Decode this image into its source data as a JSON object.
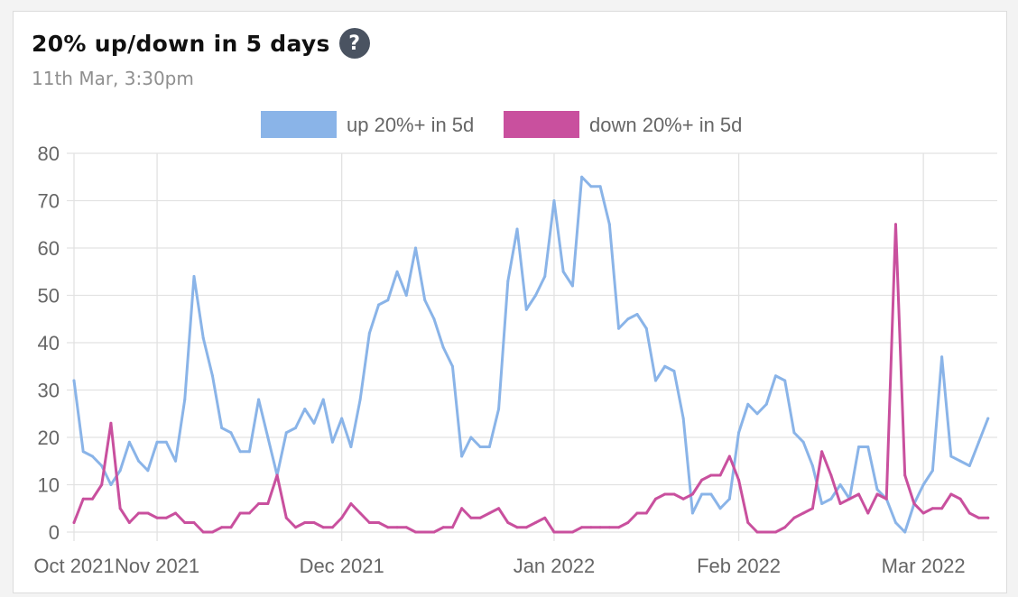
{
  "header": {
    "title": "20% up/down in 5 days",
    "help_icon": "?",
    "subtitle": "11th Mar, 3:30pm"
  },
  "chart_data": {
    "type": "line",
    "title": "20% up/down in 5 days",
    "subtitle": "11th Mar, 3:30pm",
    "xlabel": "",
    "ylabel": "",
    "ylim": [
      0,
      80
    ],
    "yticks": [
      0,
      10,
      20,
      30,
      40,
      50,
      60,
      70,
      80
    ],
    "x_range": [
      0,
      100
    ],
    "xtick_labels": [
      {
        "label": "Oct 2021",
        "pos": 0
      },
      {
        "label": "Nov 2021",
        "pos": 9
      },
      {
        "label": "Dec 2021",
        "pos": 29
      },
      {
        "label": "Jan 2022",
        "pos": 52
      },
      {
        "label": "Feb 2022",
        "pos": 72
      },
      {
        "label": "Mar 2022",
        "pos": 92
      }
    ],
    "grid": true,
    "legend_position": "top-center",
    "series": [
      {
        "name": "up 20%+ in 5d",
        "color": "#8ab4e8",
        "values": [
          32,
          17,
          16,
          14,
          10,
          13,
          19,
          15,
          13,
          19,
          19,
          15,
          28,
          54,
          41,
          33,
          22,
          21,
          17,
          17,
          28,
          20,
          12,
          21,
          22,
          26,
          23,
          28,
          19,
          24,
          18,
          28,
          42,
          48,
          49,
          55,
          50,
          60,
          49,
          45,
          39,
          35,
          16,
          20,
          18,
          18,
          26,
          53,
          64,
          47,
          50,
          54,
          70,
          55,
          52,
          75,
          73,
          73,
          65,
          43,
          45,
          46,
          43,
          32,
          35,
          34,
          24,
          4,
          8,
          8,
          5,
          7,
          21,
          27,
          25,
          27,
          33,
          32,
          21,
          19,
          14,
          6,
          7,
          10,
          7,
          18,
          18,
          9,
          7,
          2,
          0,
          6,
          10,
          13,
          37,
          16,
          15,
          14,
          19,
          24
        ]
      },
      {
        "name": "down 20%+ in 5d",
        "color": "#c9509e",
        "values": [
          2,
          7,
          7,
          10,
          23,
          5,
          2,
          4,
          4,
          3,
          3,
          4,
          2,
          2,
          0,
          0,
          1,
          1,
          4,
          4,
          6,
          6,
          12,
          3,
          1,
          2,
          2,
          1,
          1,
          3,
          6,
          4,
          2,
          2,
          1,
          1,
          1,
          0,
          0,
          0,
          1,
          1,
          5,
          3,
          3,
          4,
          5,
          2,
          1,
          1,
          2,
          3,
          0,
          0,
          0,
          1,
          1,
          1,
          1,
          1,
          2,
          4,
          4,
          7,
          8,
          8,
          7,
          8,
          11,
          12,
          12,
          16,
          11,
          2,
          0,
          0,
          0,
          1,
          3,
          4,
          5,
          17,
          12,
          6,
          7,
          8,
          4,
          8,
          7,
          65,
          12,
          6,
          4,
          5,
          5,
          8,
          7,
          4,
          3,
          3
        ]
      }
    ]
  }
}
